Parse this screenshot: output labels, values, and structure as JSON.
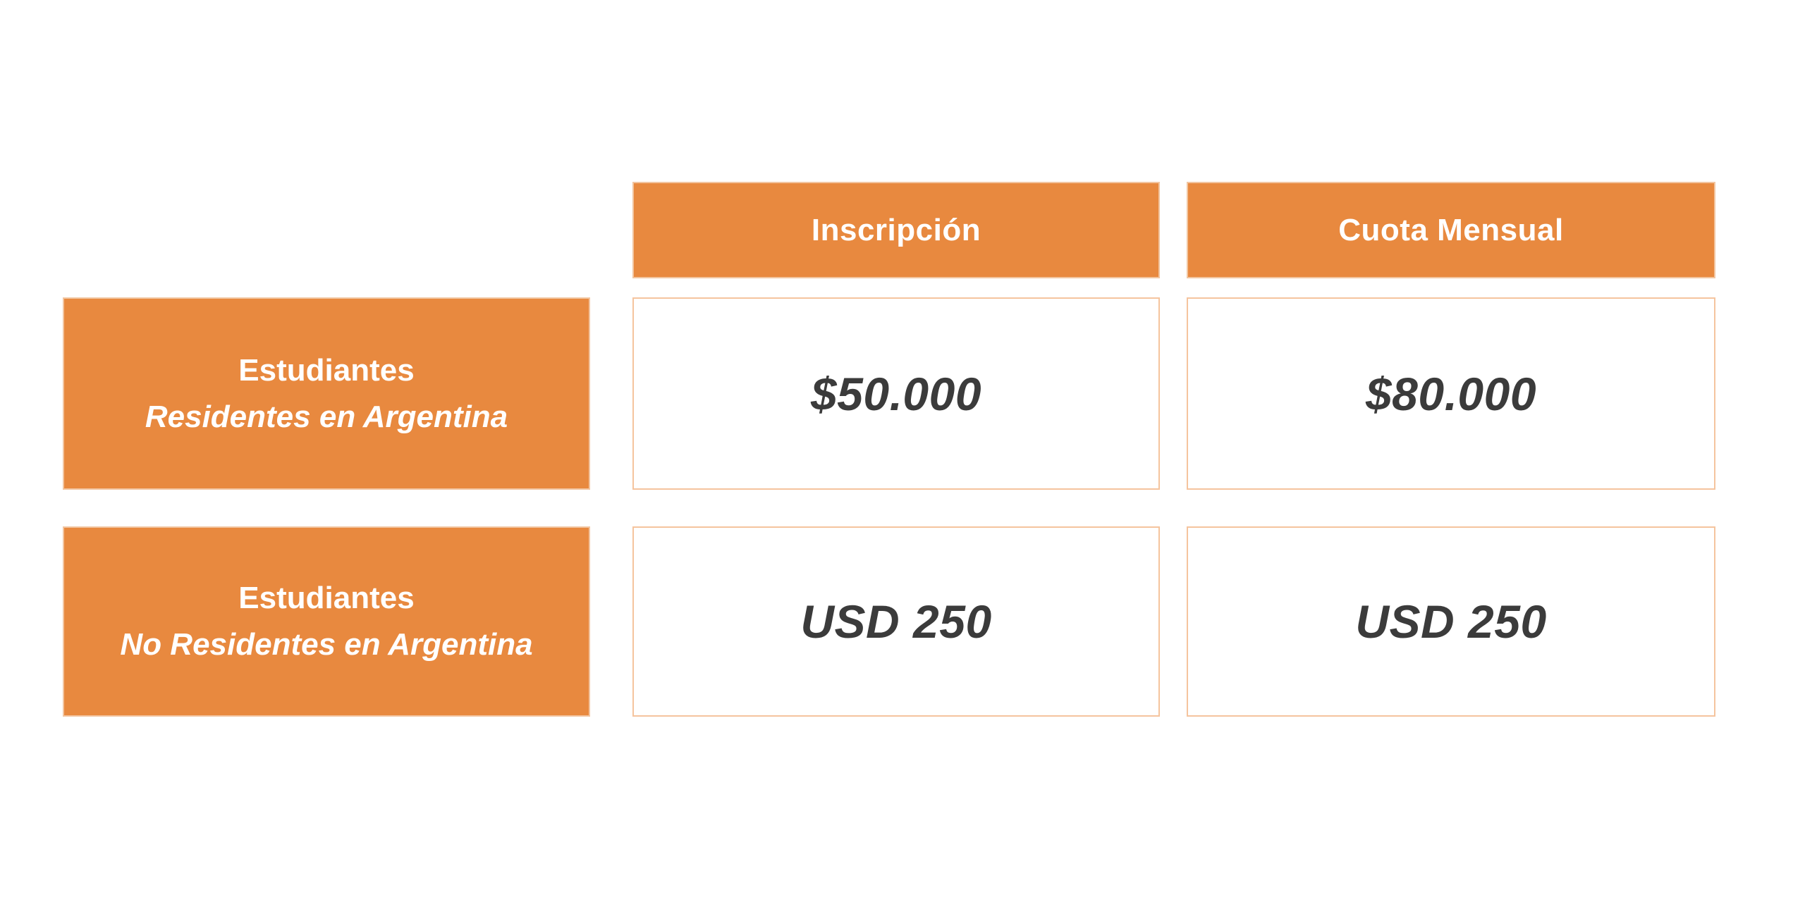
{
  "colors": {
    "accent_orange": "#E8893F",
    "edge_orange": "#F2C5A0",
    "cell_border": "#F5C49E",
    "value_text": "#3B3B3B"
  },
  "table": {
    "columns": [
      {
        "label": "Inscripción"
      },
      {
        "label": "Cuota Mensual"
      }
    ],
    "rows": [
      {
        "label_line1": "Estudiantes",
        "label_line2": "Residentes en Argentina",
        "values": [
          "$50.000",
          "$80.000"
        ]
      },
      {
        "label_line1": "Estudiantes",
        "label_line2": "No Residentes en Argentina",
        "values": [
          "USD 250",
          "USD 250"
        ]
      }
    ]
  },
  "chart_data": {
    "type": "table",
    "columns": [
      "",
      "Inscripción",
      "Cuota Mensual"
    ],
    "rows": [
      [
        "Estudiantes Residentes en Argentina",
        "$50.000",
        "$80.000"
      ],
      [
        "Estudiantes No Residentes en Argentina",
        "USD 250",
        "USD 250"
      ]
    ],
    "title": "",
    "layout_hints": {
      "header_fill": "#E8893F",
      "row_header_fill": "#E8893F",
      "value_cell_fill": "#FFFFFF",
      "value_cell_border": "#F5C49E",
      "grid": "off"
    }
  }
}
